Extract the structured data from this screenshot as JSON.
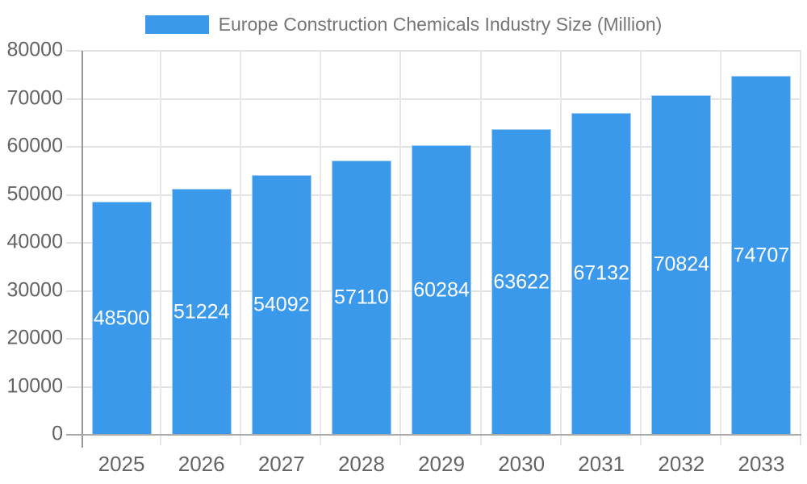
{
  "chart_data": {
    "type": "bar",
    "title": "Europe Construction Chemicals Industry Size (Million)",
    "legend_position": "top",
    "categories": [
      "2025",
      "2026",
      "2027",
      "2028",
      "2029",
      "2030",
      "2031",
      "2032",
      "2033"
    ],
    "series": [
      {
        "name": "Europe Construction Chemicals Industry Size (Million)",
        "values": [
          48500,
          51224,
          54092,
          57110,
          60284,
          63622,
          67132,
          70824,
          74707
        ]
      }
    ],
    "value_labels": [
      "48500",
      "51224",
      "54092",
      "57110",
      "60284",
      "63622",
      "67132",
      "70824",
      "74707"
    ],
    "xlabel": "",
    "ylabel": "",
    "ylim": [
      0,
      80000
    ],
    "yticks": [
      0,
      10000,
      20000,
      30000,
      40000,
      50000,
      60000,
      70000,
      80000
    ],
    "grid": true,
    "bar_color": "#3B99EC",
    "value_label_color": "#FFFFFF"
  },
  "colors": {
    "bar": "#3B99EC",
    "bar_edge": "#A9CFF2",
    "legend_text": "#757575",
    "axis_text": "#646464",
    "gridline": "#E2E2E2",
    "axis_line": "#979797",
    "baseline": "#AAAAAA",
    "background": "#FFFFFF"
  }
}
